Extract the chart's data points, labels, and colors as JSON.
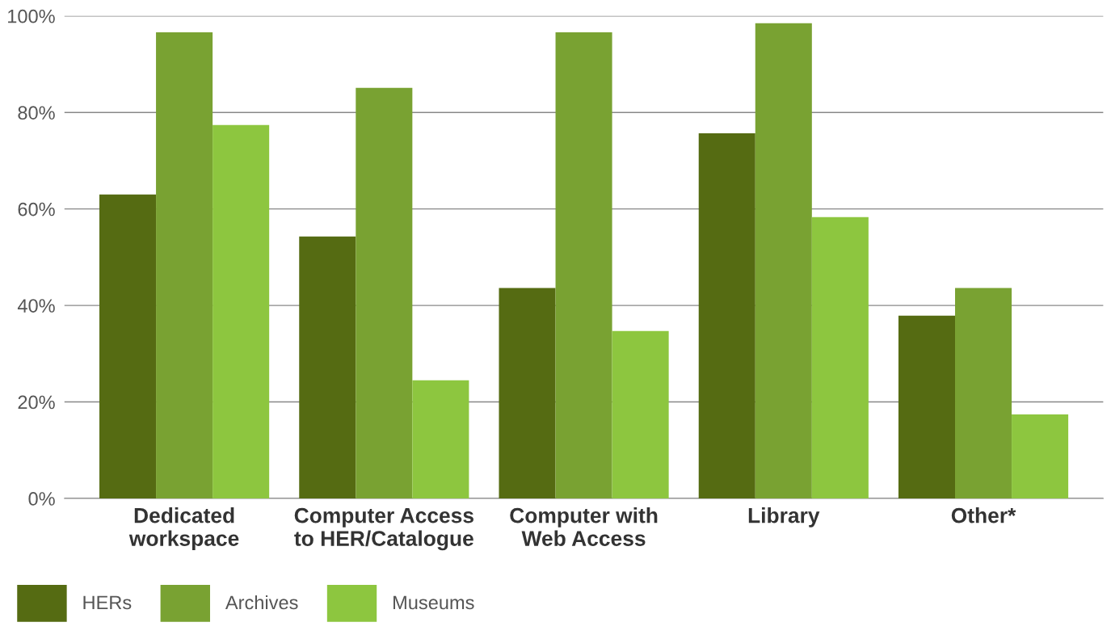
{
  "chart_data": {
    "type": "bar",
    "categories": [
      "Dedicated\nworkspace",
      "Computer Access\nto HER/Catalogue",
      "Computer with\nWeb Access",
      "Library",
      "Other*"
    ],
    "series": [
      {
        "name": "HERs",
        "color": "#556b12",
        "values": [
          63,
          54.3,
          43.6,
          75.7,
          37.9
        ]
      },
      {
        "name": "Archives",
        "color": "#79a232",
        "values": [
          96.6,
          85.1,
          96.6,
          98.5,
          43.6
        ]
      },
      {
        "name": "Museums",
        "color": "#8dc63f",
        "values": [
          77.4,
          24.5,
          34.7,
          58.3,
          17.4
        ]
      }
    ],
    "ylim": [
      0,
      100
    ],
    "yticks": [
      {
        "value": 0,
        "label": "0%"
      },
      {
        "value": 20,
        "label": "20%"
      },
      {
        "value": 40,
        "label": "40%"
      },
      {
        "value": 60,
        "label": "60%"
      },
      {
        "value": 80,
        "label": "80%"
      },
      {
        "value": 100,
        "label": "100%"
      }
    ],
    "grid": "y",
    "legend": "bottom left"
  }
}
